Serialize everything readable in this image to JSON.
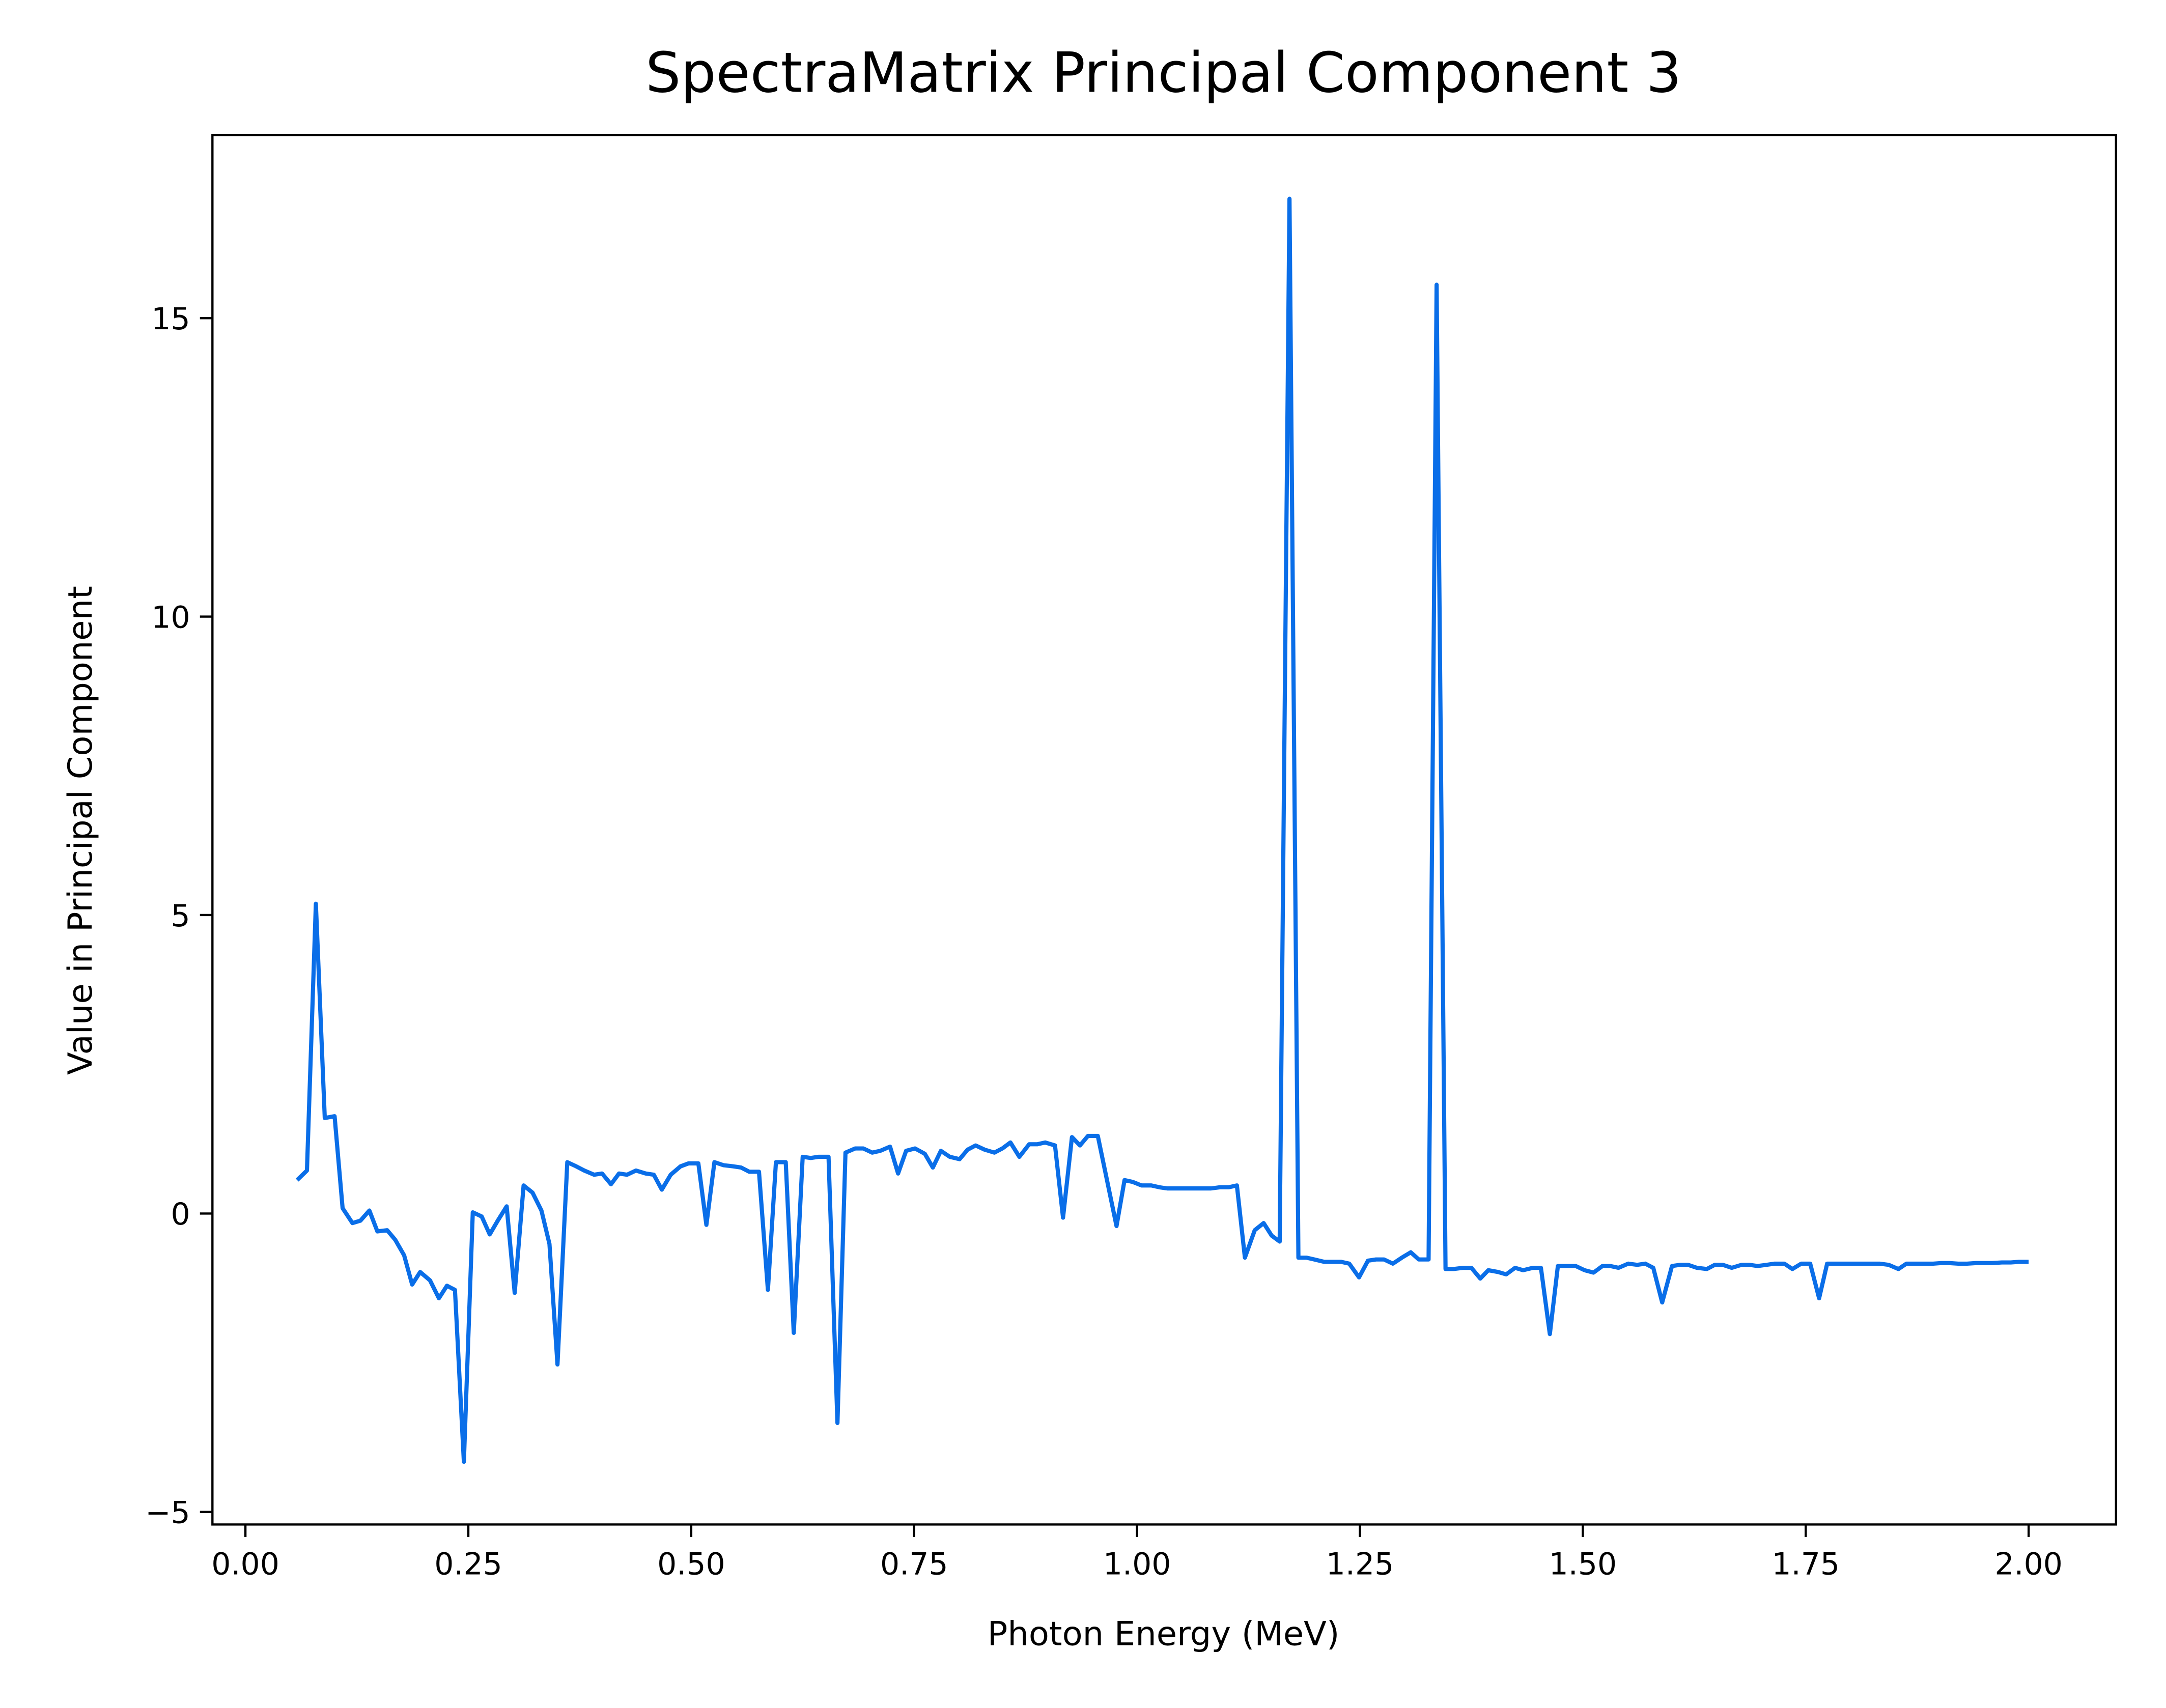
{
  "chart_data": {
    "type": "line",
    "title": "SpectraMatrix Principal Component 3",
    "xlabel": "Photon Energy (MeV)",
    "ylabel": "Value in Principal Component",
    "xlim": [
      -0.037,
      2.098
    ],
    "ylim": [
      -5.21,
      18.07
    ],
    "xticks": [
      {
        "value": 0,
        "label": "0.00"
      },
      {
        "value": 0.25,
        "label": "0.25"
      },
      {
        "value": 0.5,
        "label": "0.50"
      },
      {
        "value": 0.75,
        "label": "0.75"
      },
      {
        "value": 1,
        "label": "1.00"
      },
      {
        "value": 1.25,
        "label": "1.25"
      },
      {
        "value": 1.5,
        "label": "1.50"
      },
      {
        "value": 1.75,
        "label": "1.75"
      },
      {
        "value": 2,
        "label": "2.00"
      }
    ],
    "yticks": [
      {
        "value": -5,
        "label": "−5"
      },
      0,
      5,
      10,
      15
    ],
    "grid": false,
    "series": [
      {
        "color": "#0a6ee8",
        "x": [
          0.058,
          0.069,
          0.079,
          0.089,
          0.1,
          0.109,
          0.12,
          0.129,
          0.139,
          0.148,
          0.159,
          0.168,
          0.178,
          0.187,
          0.196,
          0.207,
          0.217,
          0.226,
          0.235,
          0.245,
          0.255,
          0.265,
          0.274,
          0.283,
          0.293,
          0.302,
          0.312,
          0.322,
          0.332,
          0.341,
          0.35,
          0.361,
          0.371,
          0.38,
          0.391,
          0.4,
          0.41,
          0.419,
          0.428,
          0.438,
          0.449,
          0.458,
          0.467,
          0.477,
          0.488,
          0.497,
          0.508,
          0.517,
          0.526,
          0.536,
          0.547,
          0.556,
          0.565,
          0.576,
          0.586,
          0.595,
          0.606,
          0.615,
          0.625,
          0.634,
          0.643,
          0.654,
          0.664,
          0.673,
          0.684,
          0.693,
          0.703,
          0.712,
          0.723,
          0.732,
          0.741,
          0.751,
          0.762,
          0.771,
          0.78,
          0.79,
          0.801,
          0.81,
          0.819,
          0.829,
          0.84,
          0.849,
          0.858,
          0.868,
          0.879,
          0.888,
          0.897,
          0.908,
          0.917,
          0.927,
          0.936,
          0.945,
          0.956,
          0.977,
          0.986,
          0.995,
          1.005,
          1.016,
          1.025,
          1.034,
          1.044,
          1.055,
          1.064,
          1.073,
          1.083,
          1.093,
          1.103,
          1.112,
          1.121,
          1.132,
          1.142,
          1.151,
          1.16,
          1.171,
          1.181,
          1.19,
          1.199,
          1.21,
          1.22,
          1.229,
          1.238,
          1.249,
          1.259,
          1.268,
          1.277,
          1.287,
          1.297,
          1.307,
          1.316,
          1.327,
          1.336,
          1.346,
          1.355,
          1.366,
          1.375,
          1.385,
          1.394,
          1.405,
          1.414,
          1.424,
          1.433,
          1.444,
          1.453,
          1.463,
          1.472,
          1.483,
          1.492,
          1.502,
          1.512,
          1.522,
          1.531,
          1.54,
          1.551,
          1.561,
          1.57,
          1.579,
          1.589,
          1.6,
          1.609,
          1.618,
          1.628,
          1.639,
          1.648,
          1.657,
          1.667,
          1.678,
          1.687,
          1.696,
          1.706,
          1.715,
          1.726,
          1.735,
          1.745,
          1.755,
          1.765,
          1.774,
          1.783,
          1.794,
          1.804,
          1.813,
          1.824,
          1.833,
          1.843,
          1.854,
          1.863,
          1.872,
          1.882,
          1.893,
          1.902,
          1.911,
          1.921,
          1.931,
          1.941,
          1.95,
          1.959,
          1.97,
          1.98,
          1.989,
          2.0
        ],
        "values": [
          0.56,
          0.72,
          5.19,
          1.6,
          1.63,
          0.09,
          -0.16,
          -0.12,
          0.05,
          -0.3,
          -0.28,
          -0.44,
          -0.7,
          -1.19,
          -0.98,
          -1.12,
          -1.42,
          -1.21,
          -1.28,
          -4.16,
          0.02,
          -0.05,
          -0.35,
          -0.12,
          0.12,
          -1.33,
          0.47,
          0.35,
          0.05,
          -0.51,
          -2.53,
          0.86,
          0.79,
          0.72,
          0.65,
          0.67,
          0.49,
          0.67,
          0.65,
          0.72,
          0.67,
          0.65,
          0.4,
          0.65,
          0.79,
          0.84,
          0.84,
          -0.19,
          0.86,
          0.81,
          0.79,
          0.77,
          0.7,
          0.7,
          -1.28,
          0.86,
          0.86,
          -2.0,
          0.95,
          0.93,
          0.95,
          0.95,
          -3.51,
          1.02,
          1.09,
          1.09,
          1.02,
          1.05,
          1.12,
          0.67,
          1.05,
          1.09,
          1.0,
          0.77,
          1.05,
          0.95,
          0.91,
          1.07,
          1.14,
          1.07,
          1.02,
          1.09,
          1.19,
          0.95,
          1.16,
          1.16,
          1.19,
          1.14,
          -0.07,
          1.28,
          1.14,
          1.3,
          1.3,
          -0.21,
          0.56,
          0.53,
          0.47,
          0.47,
          0.44,
          0.42,
          0.42,
          0.42,
          0.42,
          0.42,
          0.42,
          0.44,
          0.44,
          0.47,
          -0.74,
          -0.28,
          -0.16,
          -0.37,
          -0.47,
          17.0,
          -0.74,
          -0.74,
          -0.77,
          -0.81,
          -0.81,
          -0.81,
          -0.84,
          -1.07,
          -0.79,
          -0.77,
          -0.77,
          -0.84,
          -0.74,
          -0.65,
          -0.77,
          -0.77,
          15.56,
          -0.93,
          -0.93,
          -0.91,
          -0.91,
          -1.09,
          -0.95,
          -0.98,
          -1.02,
          -0.91,
          -0.95,
          -0.91,
          -0.91,
          -2.02,
          -0.88,
          -0.88,
          -0.88,
          -0.95,
          -0.99,
          -0.88,
          -0.88,
          -0.91,
          -0.84,
          -0.86,
          -0.84,
          -0.91,
          -1.49,
          -0.88,
          -0.86,
          -0.86,
          -0.91,
          -0.93,
          -0.86,
          -0.86,
          -0.91,
          -0.86,
          -0.86,
          -0.88,
          -0.86,
          -0.84,
          -0.84,
          -0.93,
          -0.84,
          -0.84,
          -1.42,
          -0.84,
          -0.84,
          -0.84,
          -0.84,
          -0.84,
          -0.84,
          -0.84,
          -0.86,
          -0.93,
          -0.84,
          -0.84,
          -0.84,
          -0.84,
          -0.83,
          -0.83,
          -0.84,
          -0.84,
          -0.83,
          -0.83,
          -0.83,
          -0.82,
          -0.82,
          -0.81,
          -0.81
        ]
      }
    ]
  }
}
